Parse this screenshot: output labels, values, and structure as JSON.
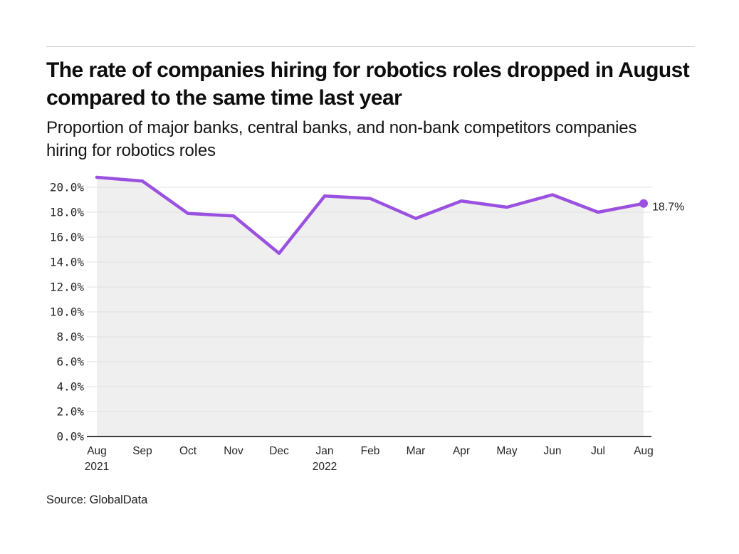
{
  "chart_data": {
    "type": "area",
    "title": "The rate of companies hiring for robotics roles dropped in August compared to the same time last year",
    "subtitle": "Proportion of major banks, central banks, and non-bank competitors companies hiring for robotics roles",
    "categories": [
      "Aug",
      "Sep",
      "Oct",
      "Nov",
      "Dec",
      "Jan",
      "Feb",
      "Mar",
      "Apr",
      "May",
      "Jun",
      "Jul",
      "Aug"
    ],
    "year_labels": [
      {
        "index": 0,
        "label": "2021"
      },
      {
        "index": 5,
        "label": "2022"
      }
    ],
    "values": [
      20.8,
      20.5,
      17.9,
      17.7,
      14.7,
      19.3,
      19.1,
      17.5,
      18.9,
      18.4,
      19.4,
      18.0,
      18.7
    ],
    "end_label": "18.7%",
    "xlabel": "",
    "ylabel": "",
    "ylim": [
      0,
      21.4
    ],
    "yticks": {
      "values": [
        0,
        2,
        4,
        6,
        8,
        10,
        12,
        14,
        16,
        18,
        20
      ],
      "labels": [
        "0.0%",
        "2.0%",
        "4.0%",
        "6.0%",
        "8.0%",
        "10.0%",
        "12.0%",
        "14.0%",
        "16.0%",
        "18.0%",
        "20.0%"
      ]
    },
    "grid": true,
    "legend": "none",
    "colors": {
      "line": "#9B51E0",
      "marker": "#9B51E0",
      "area_fill": "#EFEFEF",
      "gridline": "#E2E2E2",
      "axis": "#3D3D3D",
      "tick_text": "#262626"
    }
  },
  "footer": {
    "source": "Source: GlobalData"
  }
}
